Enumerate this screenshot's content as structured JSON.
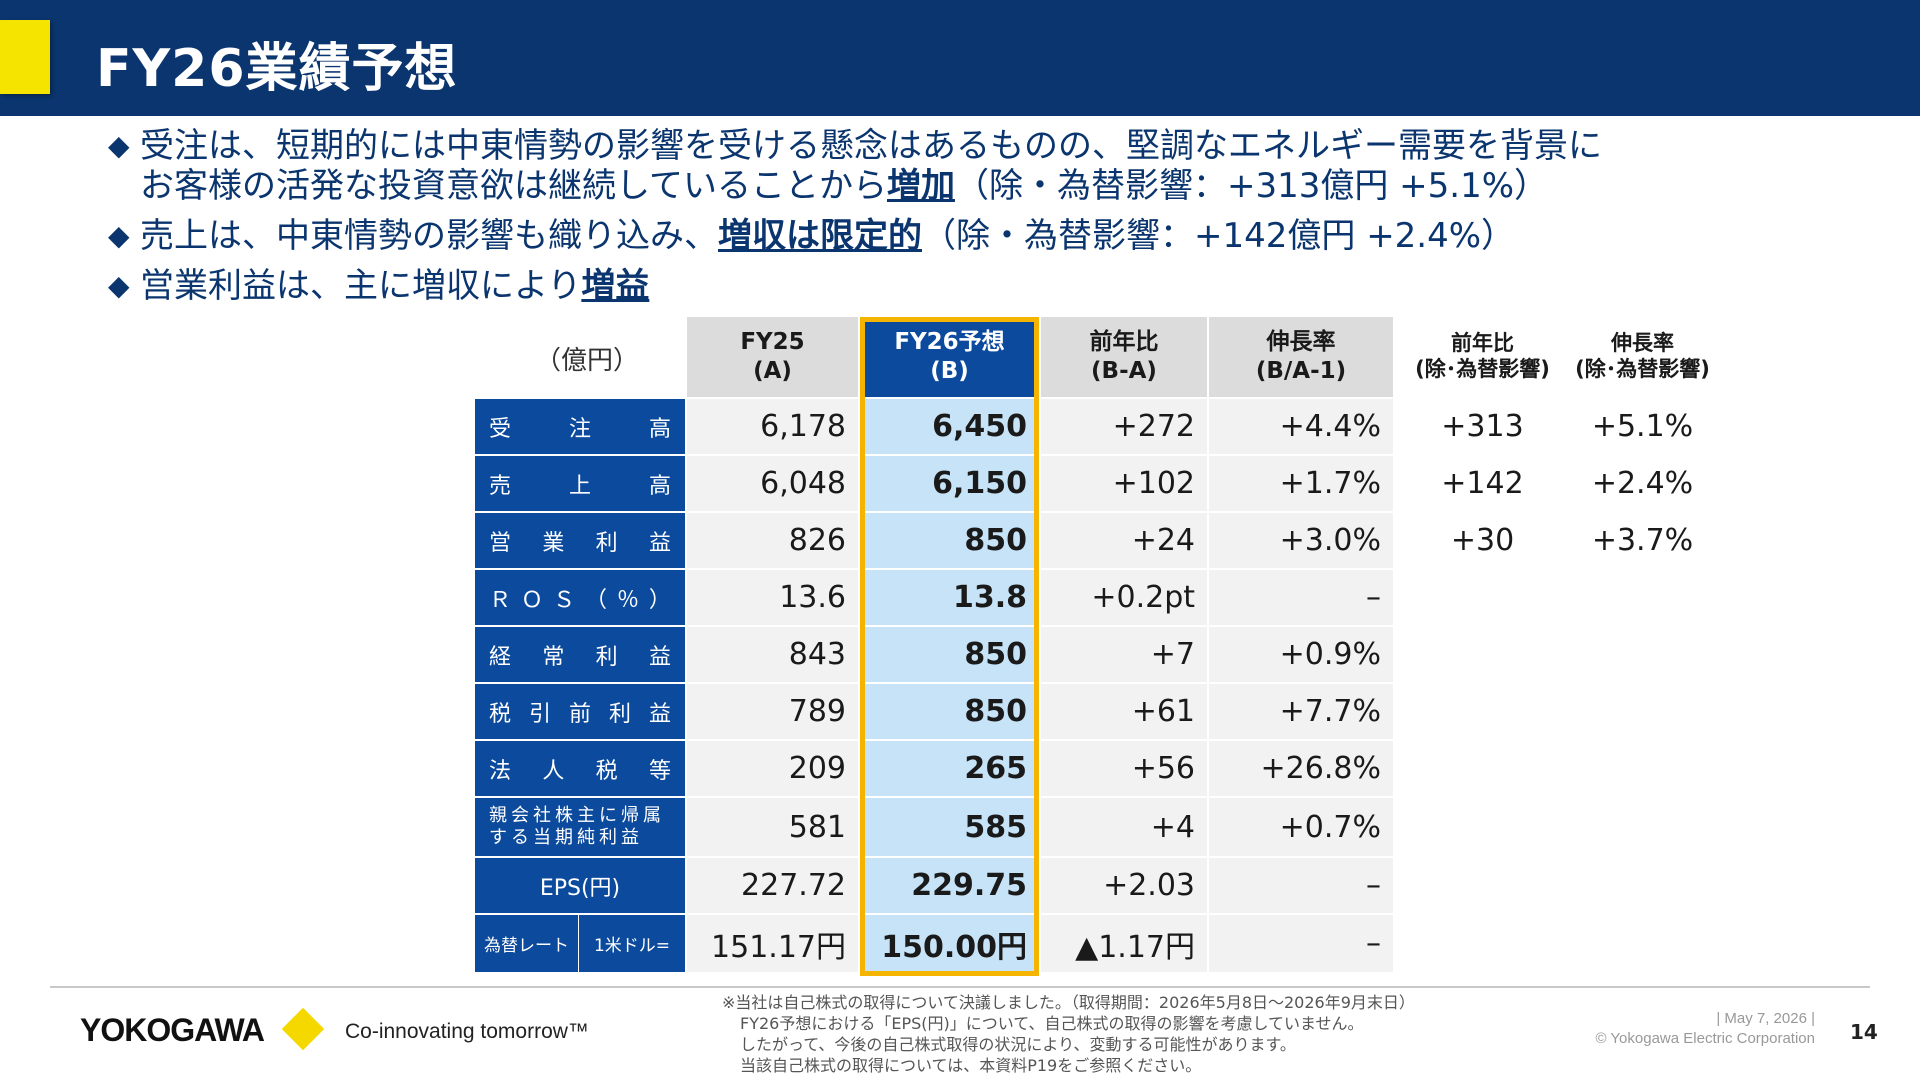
{
  "header": {
    "title": "FY26業績予想"
  },
  "bullets": [
    {
      "text_a": "受注は、短期的には中東情勢の影響を受ける懸念はあるものの、堅調なエネルギー需要を背景に",
      "text_b": "お客様の活発な投資意欲は継続していることから",
      "emphasis": "増加",
      "note": "（除・為替影響：+313億円 +5.1%）"
    },
    {
      "text_a": "売上は、中東情勢の影響も織り込み、",
      "emphasis": "増収は限定的",
      "note": "（除・為替影響：+142億円 +2.4%）"
    },
    {
      "text_a": "営業利益は、主に増収により",
      "emphasis": "増益"
    }
  ],
  "table": {
    "unit": "（億円）",
    "headers": [
      {
        "l1": "FY25",
        "l2": "(A)"
      },
      {
        "l1": "FY26予想",
        "l2": "(B)"
      },
      {
        "l1": "前年比",
        "l2": "(B-A)"
      },
      {
        "l1": "伸長率",
        "l2": "(B/A-1)"
      }
    ],
    "side_headers": [
      {
        "l1": "前年比",
        "l2": "(除･為替影響)"
      },
      {
        "l1": "伸長率",
        "l2": "(除･為替影響)"
      }
    ],
    "rows": [
      {
        "label": [
          "受",
          "注",
          "高"
        ],
        "a": "6,178",
        "b": "6,450",
        "diff": "+272",
        "rate": "+4.4%",
        "diff_ex": "+313",
        "rate_ex": "+5.1%"
      },
      {
        "label": [
          "売",
          "上",
          "高"
        ],
        "a": "6,048",
        "b": "6,150",
        "diff": "+102",
        "rate": "+1.7%",
        "diff_ex": "+142",
        "rate_ex": "+2.4%"
      },
      {
        "label": [
          "営",
          "業",
          "利",
          "益"
        ],
        "a": "826",
        "b": "850",
        "diff": "+24",
        "rate": "+3.0%",
        "diff_ex": "+30",
        "rate_ex": "+3.7%"
      },
      {
        "label": [
          "Ｒ",
          "Ｏ",
          "Ｓ",
          "（",
          "％",
          "）"
        ],
        "a": "13.6",
        "b": "13.8",
        "diff": "+0.2pt",
        "rate": "–"
      },
      {
        "label": [
          "経",
          "常",
          "利",
          "益"
        ],
        "a": "843",
        "b": "850",
        "diff": "+7",
        "rate": "+0.9%"
      },
      {
        "label": [
          "税",
          "引",
          "前",
          "利",
          "益"
        ],
        "a": "789",
        "b": "850",
        "diff": "+61",
        "rate": "+7.7%"
      },
      {
        "label": [
          "法",
          "人",
          "税",
          "等"
        ],
        "a": "209",
        "b": "265",
        "diff": "+56",
        "rate": "+26.8%"
      },
      {
        "label_l1": "親会社株主に帰属",
        "label_l2": "する当期純利益",
        "a": "581",
        "b": "585",
        "diff": "+4",
        "rate": "+0.7%"
      },
      {
        "label_center": "EPS(円)",
        "a": "227.72",
        "b": "229.75",
        "diff": "+2.03",
        "rate": "–"
      },
      {
        "label_split": [
          "為替レート",
          "1米ドル="
        ],
        "a": "151.17円",
        "b": "150.00円",
        "diff": "▲1.17円",
        "rate": "–"
      }
    ]
  },
  "footer": {
    "logo": "YOKOGAWA",
    "tagline": "Co-innovating tomorrow™",
    "footnote": [
      "※当社は自己株式の取得について決議しました。（取得期間：2026年5月8日～2026年9月末日）",
      "FY26予想における「EPS(円)」について、自己株式の取得の影響を考慮していません。",
      "したがって、今後の自己株式取得の状況により、変動する可能性があります。",
      "当該自己株式の取得については、本資料P19をご参照ください。"
    ],
    "date": "| May 7, 2026 |",
    "copyright": "© Yokogawa Electric Corporation",
    "page": "14"
  },
  "colors": {
    "navy": "#0b356e",
    "blue": "#0b4a9c",
    "highlight": "#c7e3f7",
    "gold": "#f4b400",
    "yellow": "#f5e400"
  }
}
